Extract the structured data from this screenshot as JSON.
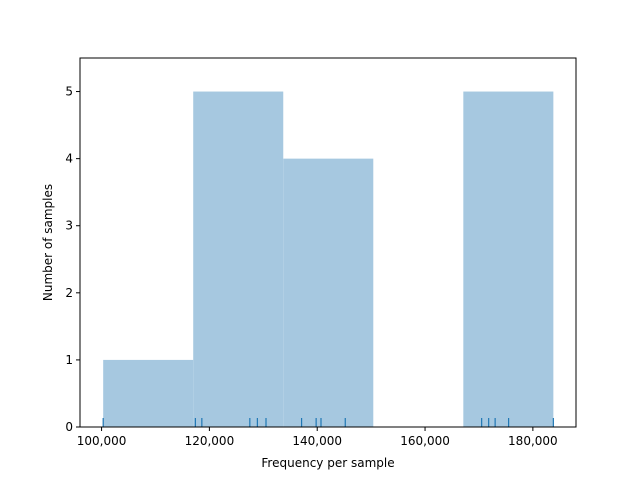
{
  "chart_data": {
    "type": "histogram",
    "xlabel": "Frequency per sample",
    "ylabel": "Number of samples",
    "xlim": [
      96000,
      188000
    ],
    "ylim": [
      0,
      5.5
    ],
    "xticks": [
      100000,
      120000,
      140000,
      160000,
      180000
    ],
    "xtick_labels": [
      "100,000",
      "120,000",
      "140,000",
      "160,000",
      "180,000"
    ],
    "yticks": [
      0,
      1,
      2,
      3,
      4,
      5
    ],
    "ytick_labels": [
      "0",
      "1",
      "2",
      "3",
      "4",
      "5"
    ],
    "bins": [
      {
        "x0": 100300,
        "x1": 117000,
        "count": 1
      },
      {
        "x0": 117000,
        "x1": 133700,
        "count": 5
      },
      {
        "x0": 133700,
        "x1": 150400,
        "count": 4
      },
      {
        "x0": 150400,
        "x1": 167100,
        "count": 0
      },
      {
        "x0": 167100,
        "x1": 183800,
        "count": 5
      }
    ],
    "rug_values": [
      100300,
      117400,
      118600,
      127500,
      128900,
      130500,
      137100,
      139800,
      140700,
      145200,
      170500,
      171800,
      173000,
      175500,
      183800
    ],
    "colors": {
      "bar": "#a6c8e0",
      "rug": "#1f77b4",
      "axes": "#000000"
    },
    "grid": false
  }
}
